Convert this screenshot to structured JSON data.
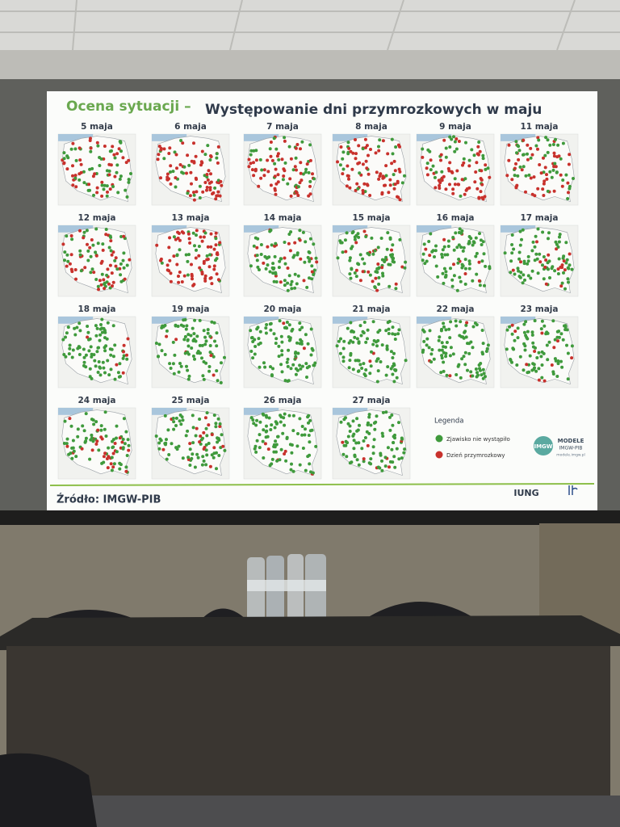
{
  "slide": {
    "title_prefix": "Ocena sytuacji –",
    "title": "Występowanie dni przymrozkowych w maju",
    "maps": [
      {
        "label": "5 maja"
      },
      {
        "label": "6 maja"
      },
      {
        "label": "7 maja"
      },
      {
        "label": "8 maja"
      },
      {
        "label": "9 maja"
      },
      {
        "label": "11 maja"
      },
      {
        "label": "12 maja"
      },
      {
        "label": "13 maja"
      },
      {
        "label": "14 maja"
      },
      {
        "label": "15 maja"
      },
      {
        "label": "16 maja"
      },
      {
        "label": "17 maja"
      },
      {
        "label": "18 maja"
      },
      {
        "label": "19 maja"
      },
      {
        "label": "20 maja"
      },
      {
        "label": "21 maja"
      },
      {
        "label": "22 maja"
      },
      {
        "label": "23 maja"
      },
      {
        "label": "24 maja"
      },
      {
        "label": "25 maja"
      },
      {
        "label": "26 maja"
      },
      {
        "label": "27 maja"
      }
    ],
    "legend": {
      "title": "Legenda",
      "items": [
        "Zjawisko nie wystąpiło",
        "Dzień przymrozkowy"
      ]
    },
    "source": "Źródło: IMGW-PIB",
    "logos": {
      "imgw_mark": "IMGW",
      "models": "MODELE",
      "models_org": "IMGW-PIB",
      "models_url": "modele.imgw.pl",
      "iung": "IUNG"
    }
  }
}
